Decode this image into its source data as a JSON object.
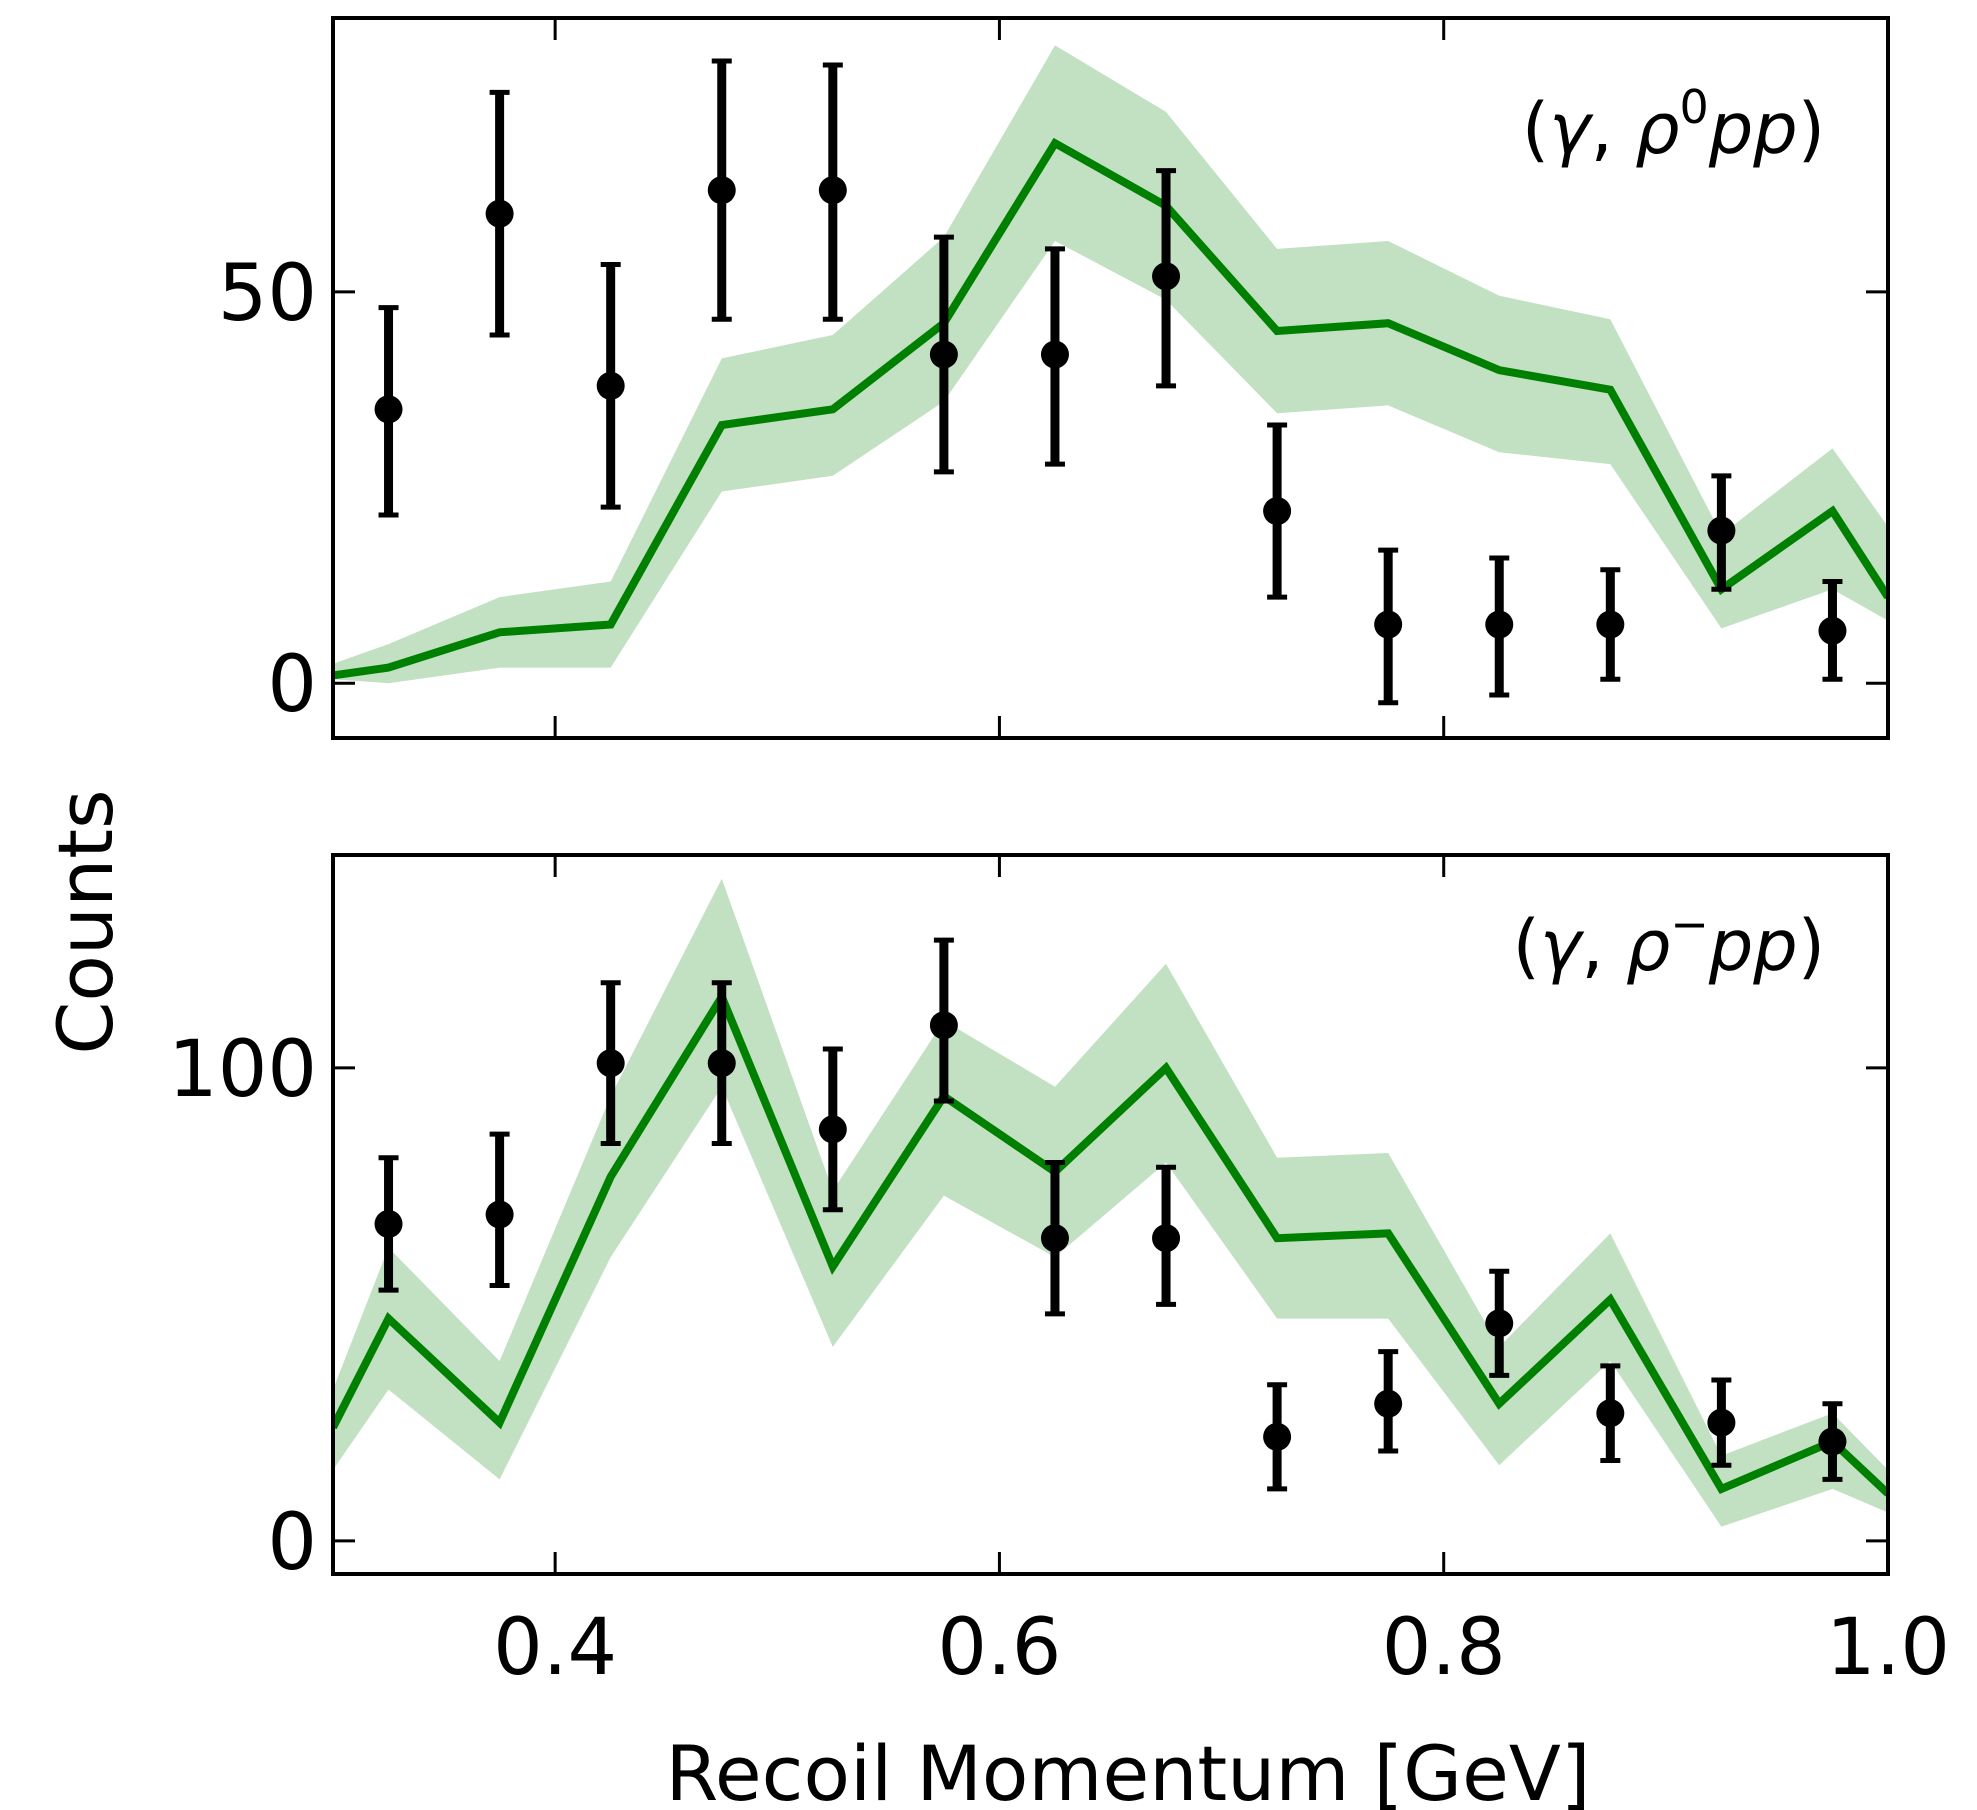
{
  "chart_data": [
    {
      "type": "line",
      "panel_label": {
        "prefix": "(",
        "gamma": "γ",
        "sep": ", ",
        "rho": "ρ",
        "sup": "0",
        "pp": "pp",
        "suffix": ")"
      },
      "xlabel": "Recoil Momentum [GeV]",
      "ylabel": "Counts",
      "xlim": [
        0.3,
        1.0
      ],
      "ylim": [
        -7,
        85
      ],
      "yticks": [
        0,
        50
      ],
      "ytick_labels": [
        "0",
        "50"
      ],
      "data_points": {
        "x": [
          0.325,
          0.375,
          0.425,
          0.475,
          0.525,
          0.575,
          0.625,
          0.675,
          0.725,
          0.775,
          0.825,
          0.875,
          0.925,
          0.975
        ],
        "y": [
          35,
          60,
          38,
          63,
          63,
          42,
          42,
          52,
          22,
          7.5,
          7.5,
          7.5,
          19.5,
          6.7
        ],
        "ylow": [
          21.5,
          44.5,
          22.5,
          46.5,
          46.5,
          27,
          28,
          38,
          11,
          -2.5,
          -1.5,
          0.5,
          12,
          0.5
        ],
        "yhigh": [
          48,
          75.5,
          53.5,
          79.5,
          79,
          57,
          55.5,
          65.5,
          33,
          17,
          16,
          14.5,
          26.5,
          13
        ]
      },
      "model": {
        "x": [
          0.3,
          0.325,
          0.375,
          0.425,
          0.475,
          0.525,
          0.575,
          0.625,
          0.675,
          0.725,
          0.775,
          0.825,
          0.875,
          0.925,
          0.975,
          1.0
        ],
        "y": [
          1,
          2,
          6.5,
          7.5,
          33,
          35,
          46,
          69,
          61,
          45,
          46,
          40,
          37.5,
          12,
          22,
          11
        ],
        "low": [
          0.5,
          0,
          2,
          2,
          24.5,
          26.5,
          36,
          56.5,
          49,
          34.5,
          35.5,
          29.5,
          28,
          7,
          12,
          8
        ],
        "high": [
          2.5,
          5,
          11,
          13,
          41.5,
          44.5,
          57,
          81.5,
          73,
          55.5,
          56.5,
          49.5,
          46.5,
          19,
          30,
          20
        ]
      },
      "grid": false
    },
    {
      "type": "line",
      "panel_label": {
        "prefix": "(",
        "gamma": "γ",
        "sep": ", ",
        "rho": "ρ",
        "sup": "−",
        "pp": "pp",
        "suffix": ")"
      },
      "xlabel": "Recoil Momentum [GeV]",
      "ylabel": "Counts",
      "xlim": [
        0.3,
        1.0
      ],
      "ylim": [
        -7,
        145
      ],
      "xticks": [
        0.4,
        0.6,
        0.8,
        1.0
      ],
      "xtick_labels": [
        "0.4",
        "0.6",
        "0.8",
        "1.0"
      ],
      "yticks": [
        0,
        100
      ],
      "ytick_labels": [
        "0",
        "100"
      ],
      "data_points": {
        "x": [
          0.325,
          0.375,
          0.425,
          0.475,
          0.525,
          0.575,
          0.625,
          0.675,
          0.725,
          0.775,
          0.825,
          0.875,
          0.925,
          0.975
        ],
        "y": [
          67,
          69,
          101,
          101,
          87,
          109,
          64,
          64,
          22,
          29,
          46,
          27,
          25,
          21
        ],
        "ylow": [
          53,
          54,
          84,
          84,
          70,
          93,
          48,
          50,
          11,
          19,
          35,
          17,
          16,
          13
        ],
        "yhigh": [
          81,
          86,
          118,
          118,
          104,
          127,
          80,
          79,
          33,
          40,
          57,
          37,
          34,
          29
        ]
      },
      "model": {
        "x": [
          0.3,
          0.325,
          0.375,
          0.425,
          0.475,
          0.525,
          0.575,
          0.625,
          0.675,
          0.725,
          0.775,
          0.825,
          0.875,
          0.925,
          0.975,
          1.0
        ],
        "y": [
          24,
          47,
          25,
          77,
          115,
          58,
          94,
          78,
          100,
          64,
          65,
          29,
          51,
          11,
          21,
          10
        ],
        "low": [
          15,
          32,
          13,
          60,
          96,
          41,
          73,
          60,
          80,
          47,
          47,
          16,
          38,
          3,
          11,
          6
        ],
        "high": [
          32,
          62,
          38,
          94,
          140,
          74,
          110,
          96,
          122,
          81,
          82,
          41,
          65,
          18,
          27,
          15
        ]
      },
      "grid": false
    }
  ],
  "colors": {
    "model_line": "#008000",
    "model_band": "#c2e0c2",
    "points": "#000000",
    "axes": "#000000"
  }
}
